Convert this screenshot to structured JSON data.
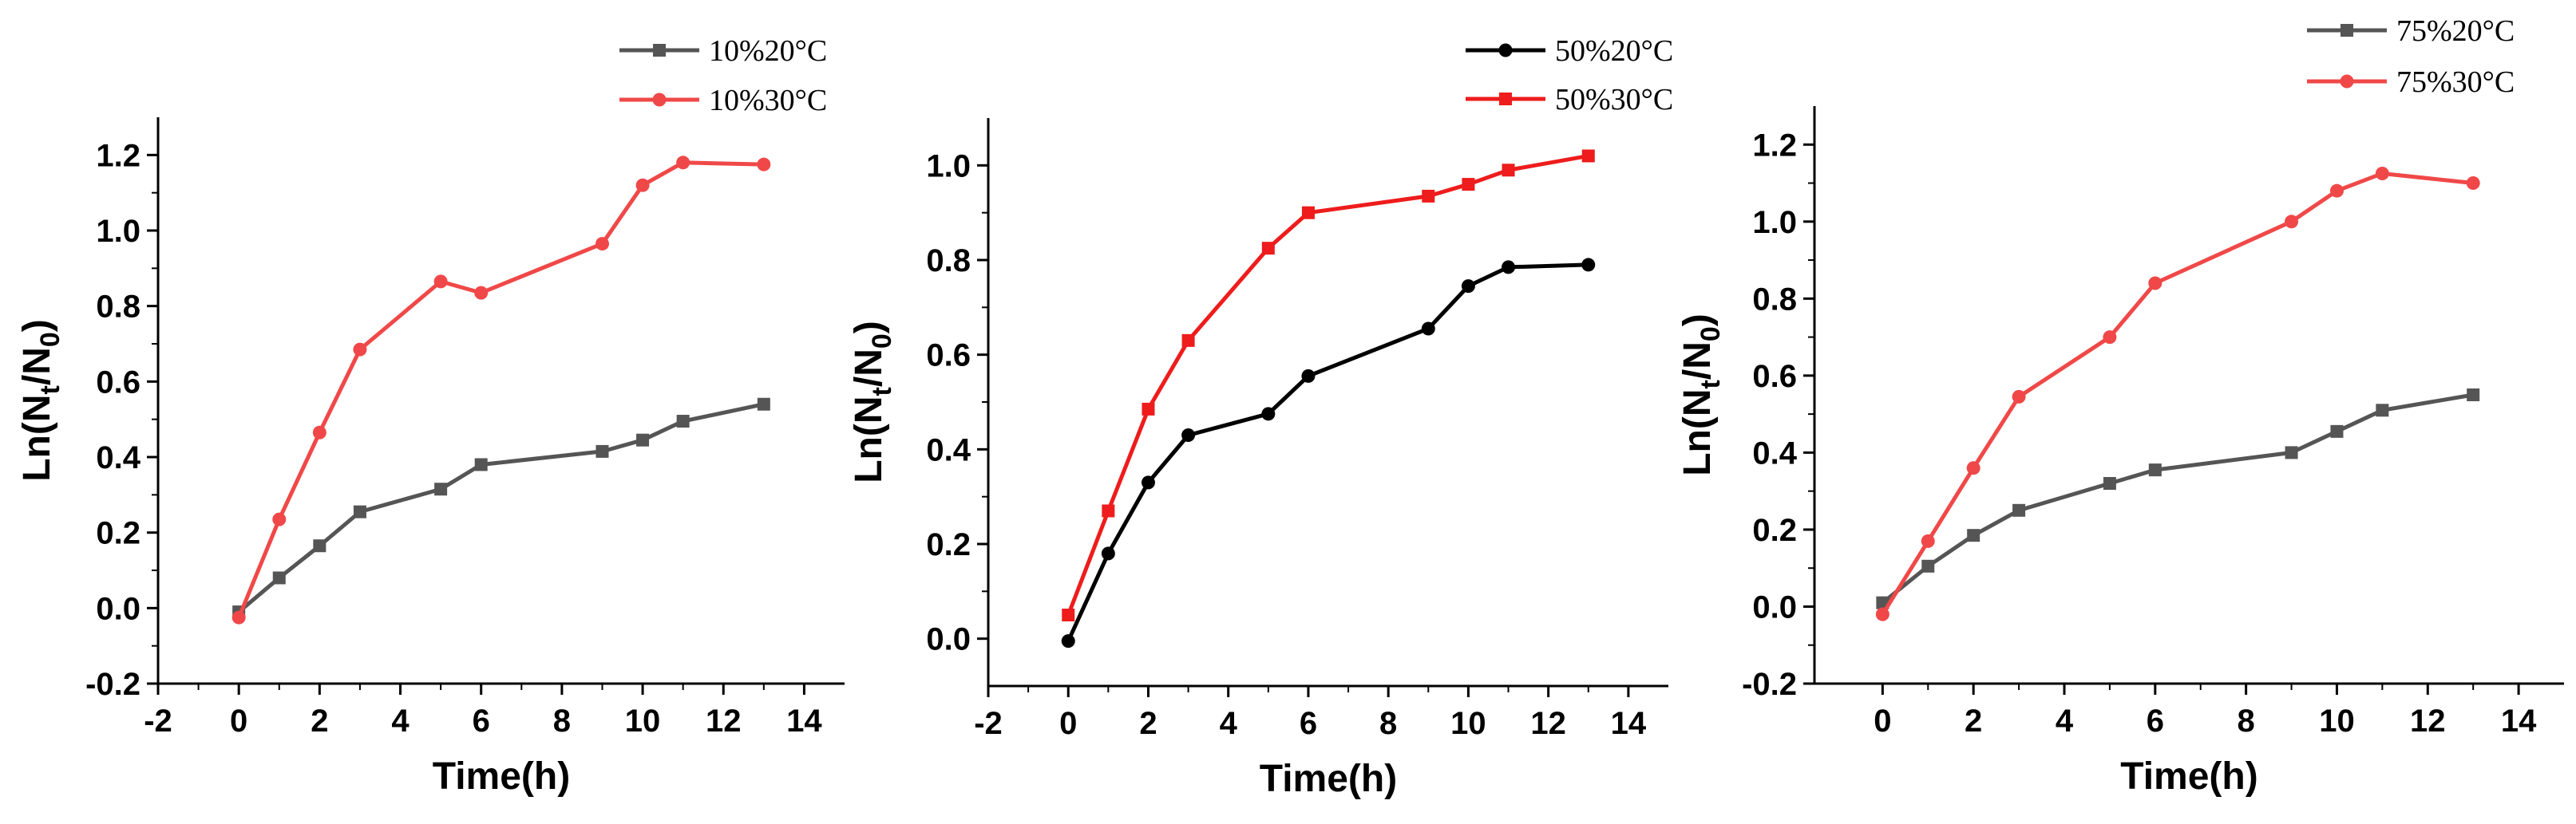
{
  "chart_data": [
    {
      "type": "line",
      "xlabel": "Time(h)",
      "ylabel": {
        "prefix": "Ln(N",
        "sub1": "t",
        "mid": "/N",
        "sub2": "0",
        "suffix": ")"
      },
      "xlim": [
        -2,
        15
      ],
      "ylim": [
        -0.2,
        1.3
      ],
      "xticks": [
        -2,
        0,
        2,
        4,
        6,
        8,
        10,
        12,
        14
      ],
      "xticklabels": [
        "-2",
        "0",
        "2",
        "4",
        "6",
        "8",
        "10",
        "12",
        "14"
      ],
      "yticks": [
        -0.2,
        0,
        0.2,
        0.4,
        0.6,
        0.8,
        1.0,
        1.2
      ],
      "yticklabels": [
        "-0.2",
        "0.0",
        "0.2",
        "0.4",
        "0.6",
        "0.8",
        "1.0",
        "1.2"
      ],
      "legend_position": "top-right-outside",
      "series": [
        {
          "name": "10%20°C",
          "color": "#555555",
          "marker": "square",
          "x": [
            0,
            1,
            2,
            3,
            5,
            6,
            9,
            10,
            11,
            13
          ],
          "y": [
            -0.01,
            0.08,
            0.165,
            0.255,
            0.315,
            0.38,
            0.415,
            0.445,
            0.495,
            0.54
          ]
        },
        {
          "name": "10%30°C",
          "color": "#f04848",
          "marker": "circle",
          "x": [
            0,
            1,
            2,
            3,
            5,
            6,
            9,
            10,
            11,
            13
          ],
          "y": [
            -0.025,
            0.235,
            0.465,
            0.685,
            0.865,
            0.835,
            0.965,
            1.12,
            1.18,
            1.175
          ]
        }
      ]
    },
    {
      "type": "line",
      "xlabel": "Time(h)",
      "ylabel": {
        "prefix": "Ln(N",
        "sub1": "t",
        "mid": "/N",
        "sub2": "0",
        "suffix": ")"
      },
      "xlim": [
        -2,
        15
      ],
      "ylim": [
        -0.1,
        1.1
      ],
      "xticks": [
        -2,
        0,
        2,
        4,
        6,
        8,
        10,
        12,
        14
      ],
      "xticklabels": [
        "-2",
        "0",
        "2",
        "4",
        "6",
        "8",
        "10",
        "12",
        "14"
      ],
      "yticks": [
        0,
        0.2,
        0.4,
        0.6,
        0.8,
        1.0
      ],
      "yticklabels": [
        "0.0",
        "0.2",
        "0.4",
        "0.6",
        "0.8",
        "1.0"
      ],
      "legend_position": "top-right-outside",
      "series": [
        {
          "name": "50%20°C",
          "color": "#000000",
          "marker": "circle",
          "x": [
            0,
            1,
            2,
            3,
            5,
            6,
            9,
            10,
            11,
            13
          ],
          "y": [
            -0.005,
            0.18,
            0.33,
            0.43,
            0.475,
            0.555,
            0.655,
            0.745,
            0.785,
            0.79
          ]
        },
        {
          "name": "50%30°C",
          "color": "#ee1c1c",
          "marker": "square",
          "x": [
            0,
            1,
            2,
            3,
            5,
            6,
            9,
            10,
            11,
            13
          ],
          "y": [
            0.05,
            0.27,
            0.485,
            0.63,
            0.825,
            0.9,
            0.935,
            0.96,
            0.99,
            1.02
          ]
        }
      ]
    },
    {
      "type": "line",
      "xlabel": "Time(h)",
      "ylabel": {
        "prefix": "Ln(N",
        "sub1": "t",
        "mid": "/N",
        "sub2": "0",
        "suffix": ")"
      },
      "xlim": [
        -1.5,
        15
      ],
      "ylim": [
        -0.2,
        1.3
      ],
      "xticks": [
        0,
        2,
        4,
        6,
        8,
        10,
        12,
        14
      ],
      "xticklabels": [
        "0",
        "2",
        "4",
        "6",
        "8",
        "10",
        "12",
        "14"
      ],
      "yticks": [
        -0.2,
        0,
        0.2,
        0.4,
        0.6,
        0.8,
        1.0,
        1.2
      ],
      "yticklabels": [
        "-0.2",
        "0.0",
        "0.2",
        "0.4",
        "0.6",
        "0.8",
        "1.0",
        "1.2"
      ],
      "legend_position": "top-right-outside",
      "series": [
        {
          "name": "75%20°C",
          "color": "#555555",
          "marker": "square",
          "x": [
            0,
            1,
            2,
            3,
            5,
            6,
            9,
            10,
            11,
            13
          ],
          "y": [
            0.01,
            0.105,
            0.185,
            0.25,
            0.32,
            0.355,
            0.4,
            0.455,
            0.51,
            0.55
          ]
        },
        {
          "name": "75%30°C",
          "color": "#f04848",
          "marker": "circle",
          "x": [
            0,
            1,
            2,
            3,
            5,
            6,
            9,
            10,
            11,
            13
          ],
          "y": [
            -0.02,
            0.17,
            0.36,
            0.545,
            0.7,
            0.84,
            1.0,
            1.08,
            1.125,
            1.1
          ]
        }
      ]
    }
  ]
}
